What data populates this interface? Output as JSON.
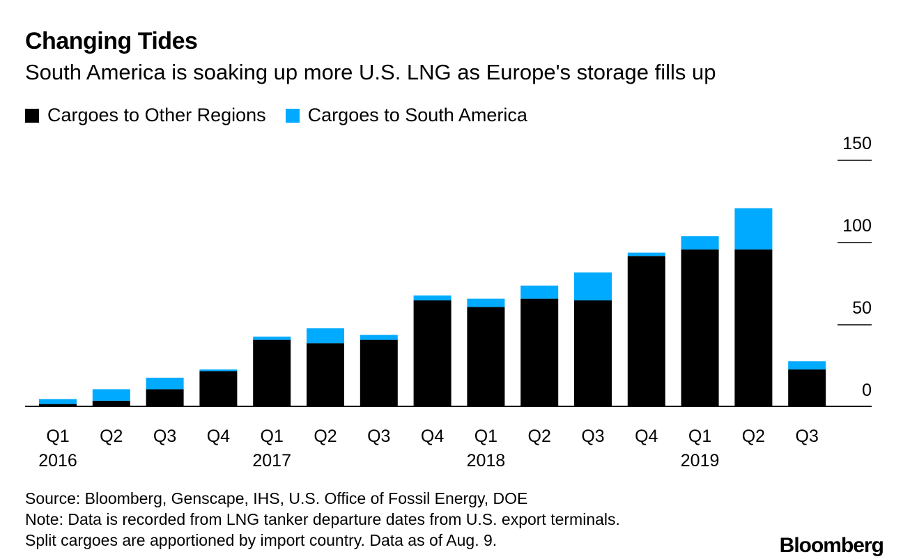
{
  "title": "Changing Tides",
  "subtitle": "South America is soaking up more U.S. LNG as Europe's storage fills up",
  "legend": [
    {
      "label": "Cargoes to Other Regions",
      "color": "#000000"
    },
    {
      "label": "Cargoes to South America",
      "color": "#00AAFF"
    }
  ],
  "chart_data": {
    "type": "bar",
    "stacked": true,
    "categories": [
      "Q1",
      "Q2",
      "Q3",
      "Q4",
      "Q1",
      "Q2",
      "Q3",
      "Q4",
      "Q1",
      "Q2",
      "Q3",
      "Q4",
      "Q1",
      "Q2",
      "Q3"
    ],
    "year_labels": [
      {
        "index": 0,
        "label": "2016"
      },
      {
        "index": 4,
        "label": "2017"
      },
      {
        "index": 8,
        "label": "2018"
      },
      {
        "index": 12,
        "label": "2019"
      }
    ],
    "series": [
      {
        "name": "Cargoes to Other Regions",
        "color": "#000000",
        "values": [
          1,
          3,
          10,
          21,
          40,
          38,
          40,
          64,
          60,
          65,
          64,
          91,
          95,
          95,
          22
        ]
      },
      {
        "name": "Cargoes to South America",
        "color": "#00AAFF",
        "values": [
          3,
          7,
          7,
          1,
          2,
          9,
          3,
          3,
          5,
          8,
          17,
          2,
          8,
          25,
          5
        ]
      }
    ],
    "yticks": [
      0,
      50,
      100,
      150
    ],
    "ylim": [
      0,
      150
    ],
    "grid": false,
    "legend_position": "top-left"
  },
  "footer": {
    "source": "Source: Bloomberg, Genscape, IHS, U.S. Office of Fossil Energy, DOE",
    "note1": "Note: Data is recorded from LNG tanker departure dates from U.S. export terminals.",
    "note2": "Split cargoes are apportioned by import country. Data as of Aug. 9."
  },
  "logo": "Bloomberg"
}
